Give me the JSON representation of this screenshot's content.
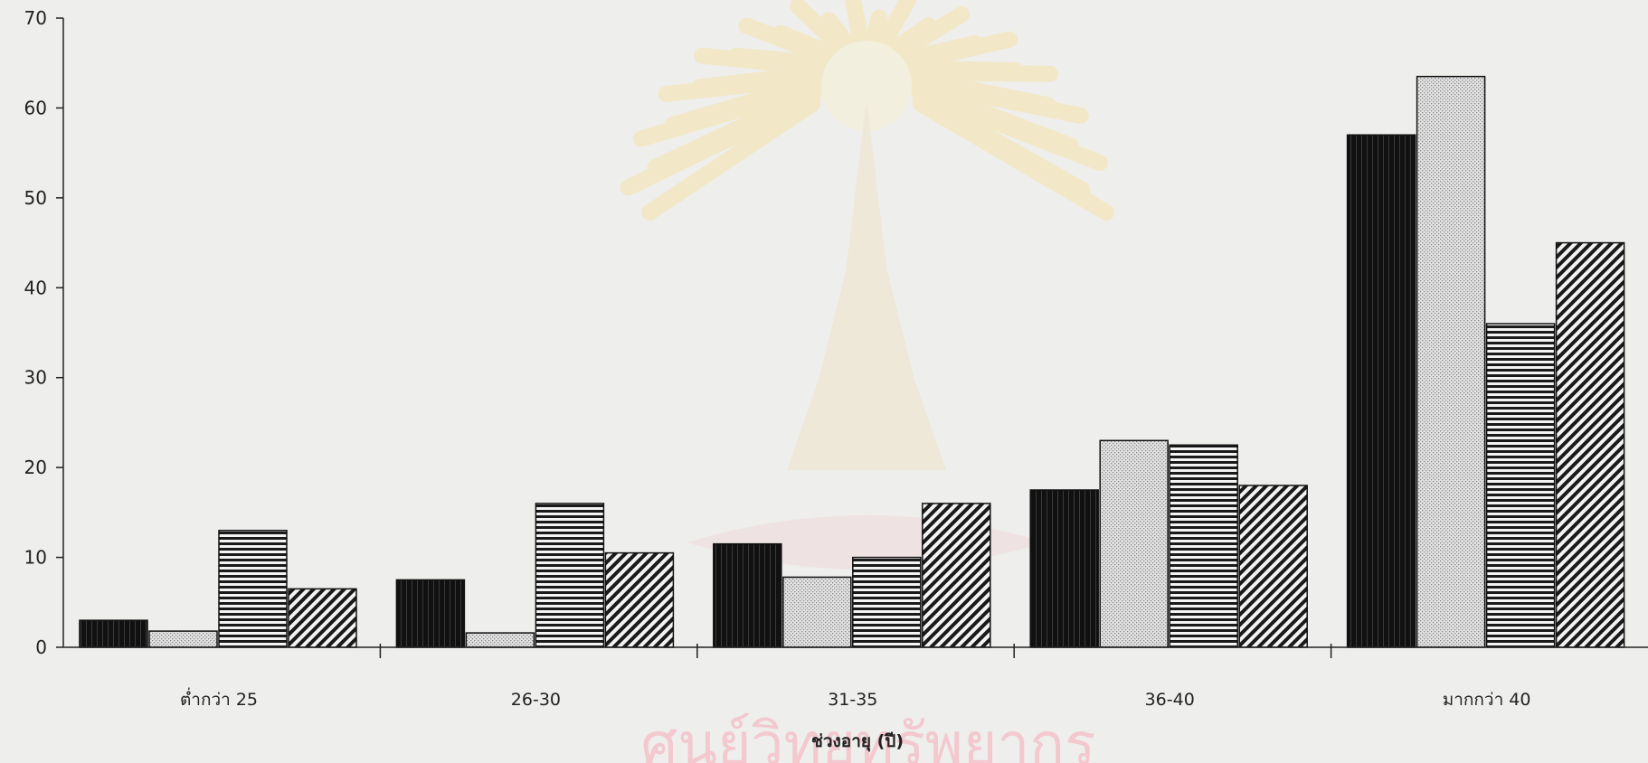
{
  "chart_data": {
    "type": "bar",
    "title": "",
    "xlabel": "ช่วงอายุ (ปี)",
    "ylabel": "",
    "ylim": [
      0,
      70
    ],
    "yticks": [
      0,
      10,
      20,
      30,
      40,
      50,
      60,
      70
    ],
    "categories": [
      "ต่ำกว่า 25",
      "26-30",
      "31-35",
      "36-40",
      "มากกว่า 40"
    ],
    "grid": false,
    "legend": "none",
    "series": [
      {
        "pattern": "solid-black",
        "color": "#111111",
        "values": [
          3,
          7.5,
          11.5,
          17.5,
          57
        ]
      },
      {
        "pattern": "light-dotted",
        "color": "#cfcfcf",
        "values": [
          1.8,
          1.6,
          7.8,
          23,
          63.5
        ]
      },
      {
        "pattern": "horizontal-stripes",
        "color": "#222222",
        "values": [
          13,
          16,
          10,
          22.5,
          36
        ]
      },
      {
        "pattern": "diagonal-hatch",
        "color": "#222222",
        "values": [
          6.5,
          10.5,
          16,
          18,
          45
        ]
      }
    ]
  },
  "watermark": {
    "text": "ศูนย์วิทยทรัพยากร"
  }
}
